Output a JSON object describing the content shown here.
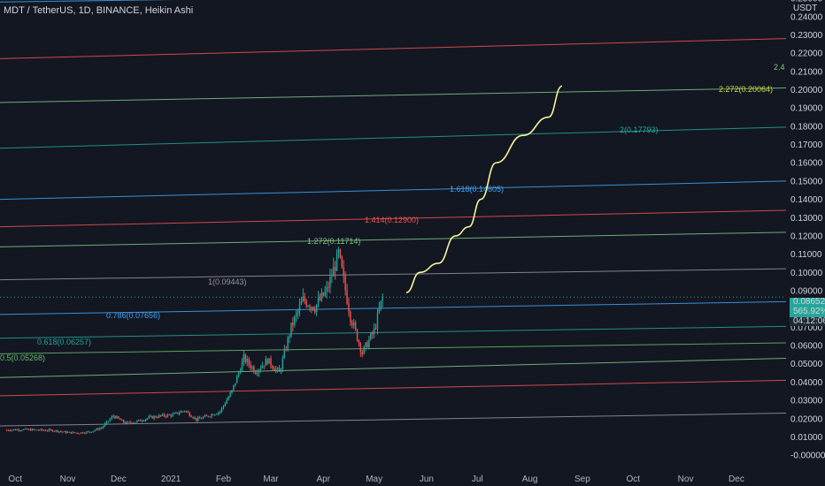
{
  "header": {
    "title": "MDT / TetherUS, 1D, BINANCE, Heikin Ashi"
  },
  "price_axis": {
    "unit": "USDT",
    "labels": [
      "0.25000",
      "0.24000",
      "0.23000",
      "0.22000",
      "0.21000",
      "0.20000",
      "0.19000",
      "0.18000",
      "0.17000",
      "0.16000",
      "0.15000",
      "0.14000",
      "0.13000",
      "0.12000",
      "0.11000",
      "0.10000",
      "0.09000",
      "0.08000",
      "0.07000",
      "0.06000",
      "0.05000",
      "0.04000",
      "0.03000",
      "0.02000",
      "0.01000",
      "-0.00000"
    ],
    "current_price": "0.08652",
    "change_pct": "565.92%",
    "countdown": "04:12:06",
    "badge_color": "#26a69a"
  },
  "time_axis": {
    "labels": [
      "Oct",
      "Nov",
      "Dec",
      "2021",
      "Feb",
      "Mar",
      "Apr",
      "May",
      "Jun",
      "Jul",
      "Aug",
      "Sep",
      "Oct",
      "Nov",
      "Dec"
    ]
  },
  "chart_data": {
    "type": "candlestick",
    "title": "MDT / TetherUS, 1D, BINANCE, Heikin Ashi",
    "ylim": [
      -0.0025,
      0.251
    ],
    "y_unit": "USDT",
    "x_range": [
      "2020-09-22",
      "2021-12-31"
    ],
    "last_price": 0.08652,
    "candles_weekly_close": [
      [
        "2020-09-26",
        0.0138
      ],
      [
        "2020-10-03",
        0.014
      ],
      [
        "2020-10-10",
        0.0139
      ],
      [
        "2020-10-17",
        0.0137
      ],
      [
        "2020-10-24",
        0.0135
      ],
      [
        "2020-10-31",
        0.0125
      ],
      [
        "2020-11-07",
        0.0122
      ],
      [
        "2020-11-14",
        0.0128
      ],
      [
        "2020-11-21",
        0.015
      ],
      [
        "2020-11-28",
        0.0215
      ],
      [
        "2020-12-05",
        0.0175
      ],
      [
        "2020-12-12",
        0.0185
      ],
      [
        "2020-12-19",
        0.0205
      ],
      [
        "2020-12-26",
        0.0215
      ],
      [
        "2021-01-02",
        0.022
      ],
      [
        "2021-01-09",
        0.0245
      ],
      [
        "2021-01-16",
        0.0195
      ],
      [
        "2021-01-23",
        0.0215
      ],
      [
        "2021-01-30",
        0.024
      ],
      [
        "2021-02-06",
        0.035
      ],
      [
        "2021-02-13",
        0.053
      ],
      [
        "2021-02-20",
        0.046
      ],
      [
        "2021-02-27",
        0.052
      ],
      [
        "2021-03-06",
        0.045
      ],
      [
        "2021-03-13",
        0.07
      ],
      [
        "2021-03-20",
        0.085
      ],
      [
        "2021-03-27",
        0.081
      ],
      [
        "2021-04-03",
        0.09
      ],
      [
        "2021-04-10",
        0.11
      ],
      [
        "2021-04-17",
        0.076
      ],
      [
        "2021-04-24",
        0.056
      ],
      [
        "2021-05-01",
        0.068
      ],
      [
        "2021-05-06",
        0.0865
      ]
    ],
    "fib_levels": [
      {
        "label": "0.5(0.05268)",
        "color": "#66bb6a"
      },
      {
        "label": "0.618(0.06257)",
        "color": "#26a69a"
      },
      {
        "label": "0.786(0.07656)",
        "color": "#42a5f5"
      },
      {
        "label": "1(0.09443)",
        "color": "#9598a1"
      },
      {
        "label": "1.272(0.11714)",
        "color": "#81c784"
      },
      {
        "label": "1.414(0.12900)",
        "color": "#ef5350"
      },
      {
        "label": "1.618(0.14605)",
        "color": "#42a5f5"
      },
      {
        "label": "2(0.17793)",
        "color": "#26a69a"
      },
      {
        "label": "2.272(0.20064)",
        "color": "#cddc39"
      },
      {
        "label": "2.4",
        "color": "#81c784"
      }
    ],
    "projection_path": [
      [
        "2021-05-20",
        0.089
      ],
      [
        "2021-05-28",
        0.1
      ],
      [
        "2021-06-08",
        0.105
      ],
      [
        "2021-06-18",
        0.12
      ],
      [
        "2021-06-26",
        0.125
      ],
      [
        "2021-07-03",
        0.14
      ],
      [
        "2021-07-12",
        0.16
      ],
      [
        "2021-07-28",
        0.175
      ],
      [
        "2021-08-12",
        0.185
      ],
      [
        "2021-08-20",
        0.202
      ]
    ],
    "colors": {
      "up": "#26a69a",
      "down": "#ef5350",
      "projection": "#f5f59a"
    }
  }
}
